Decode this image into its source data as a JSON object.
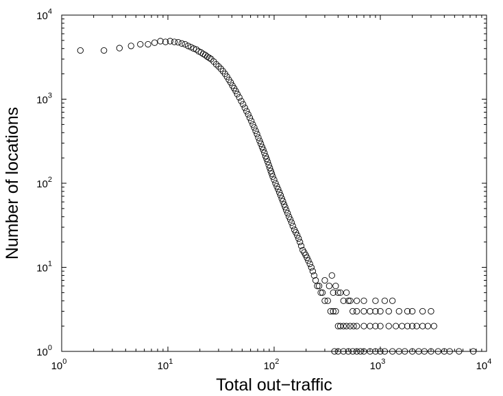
{
  "chart_data": {
    "type": "scatter",
    "title": "",
    "xlabel": "Total out−traffic",
    "ylabel": "Number of locations",
    "xscale": "log",
    "yscale": "log",
    "xlim": [
      1,
      10000
    ],
    "ylim": [
      1,
      10000
    ],
    "grid": false,
    "marker": "open-circle",
    "marker_color": "#000000",
    "x_ticks": [
      {
        "value": 1,
        "base": "10",
        "exp": "0"
      },
      {
        "value": 10,
        "base": "10",
        "exp": "1"
      },
      {
        "value": 100,
        "base": "10",
        "exp": "2"
      },
      {
        "value": 1000,
        "base": "10",
        "exp": "3"
      },
      {
        "value": 10000,
        "base": "10",
        "exp": "4"
      }
    ],
    "y_ticks": [
      {
        "value": 1,
        "base": "10",
        "exp": "0"
      },
      {
        "value": 10,
        "base": "10",
        "exp": "1"
      },
      {
        "value": 100,
        "base": "10",
        "exp": "2"
      },
      {
        "value": 1000,
        "base": "10",
        "exp": "3"
      },
      {
        "value": 10000,
        "base": "10",
        "exp": "4"
      }
    ],
    "series": [
      {
        "points": [
          [
            1.5,
            3800
          ],
          [
            2.5,
            3800
          ],
          [
            3.5,
            4050
          ],
          [
            4.5,
            4300
          ],
          [
            5.5,
            4500
          ],
          [
            6.5,
            4500
          ],
          [
            7.5,
            4700
          ],
          [
            8.5,
            4900
          ],
          [
            9.5,
            4800
          ],
          [
            10.5,
            4900
          ],
          [
            11.5,
            4800
          ],
          [
            12.5,
            4750
          ],
          [
            13.5,
            4600
          ],
          [
            14.5,
            4500
          ],
          [
            15.5,
            4300
          ],
          [
            16.5,
            4150
          ],
          [
            17.5,
            4000
          ],
          [
            18.5,
            3900
          ],
          [
            19.5,
            3700
          ],
          [
            20.5,
            3600
          ],
          [
            21.5,
            3450
          ],
          [
            22.5,
            3350
          ],
          [
            23.5,
            3200
          ],
          [
            24.5,
            3100
          ],
          [
            25.5,
            3000
          ],
          [
            27,
            2800
          ],
          [
            28.5,
            2600
          ],
          [
            30,
            2450
          ],
          [
            31.5,
            2300
          ],
          [
            33,
            2150
          ],
          [
            34.5,
            2000
          ],
          [
            36,
            1850
          ],
          [
            37.5,
            1700
          ],
          [
            39,
            1580
          ],
          [
            40.5,
            1450
          ],
          [
            42,
            1350
          ],
          [
            43.5,
            1250
          ],
          [
            45,
            1150
          ],
          [
            47,
            1050
          ],
          [
            49,
            950
          ],
          [
            51,
            870
          ],
          [
            53,
            790
          ],
          [
            55,
            720
          ],
          [
            57,
            660
          ],
          [
            59,
            600
          ],
          [
            61,
            550
          ],
          [
            63,
            500
          ],
          [
            65,
            460
          ],
          [
            67,
            420
          ],
          [
            69,
            385
          ],
          [
            71,
            350
          ],
          [
            73,
            320
          ],
          [
            75,
            295
          ],
          [
            77,
            270
          ],
          [
            79,
            250
          ],
          [
            81,
            230
          ],
          [
            83,
            210
          ],
          [
            85,
            195
          ],
          [
            87,
            180
          ],
          [
            89,
            165
          ],
          [
            91,
            152
          ],
          [
            93,
            140
          ],
          [
            95,
            130
          ],
          [
            97,
            120
          ],
          [
            100,
            110
          ],
          [
            103,
            100
          ],
          [
            106,
            92
          ],
          [
            109,
            85
          ],
          [
            112,
            78
          ],
          [
            115,
            72
          ],
          [
            118,
            66
          ],
          [
            121,
            61
          ],
          [
            124,
            56
          ],
          [
            127,
            52
          ],
          [
            130,
            48
          ],
          [
            134,
            44
          ],
          [
            138,
            40
          ],
          [
            142,
            37
          ],
          [
            146,
            34
          ],
          [
            150,
            31
          ],
          [
            155,
            28
          ],
          [
            160,
            26
          ],
          [
            165,
            24
          ],
          [
            170,
            22
          ],
          [
            175,
            20
          ],
          [
            180,
            18
          ],
          [
            186,
            16
          ],
          [
            192,
            15
          ],
          [
            198,
            14
          ],
          [
            204,
            13
          ],
          [
            210,
            12
          ],
          [
            217,
            11
          ],
          [
            224,
            10
          ],
          [
            231,
            9
          ],
          [
            238,
            8
          ],
          [
            246,
            7
          ],
          [
            255,
            6
          ],
          [
            265,
            6
          ],
          [
            275,
            5
          ],
          [
            285,
            5
          ],
          [
            300,
            4
          ],
          [
            320,
            4
          ],
          [
            340,
            3
          ],
          [
            360,
            3
          ],
          [
            380,
            3
          ],
          [
            400,
            2
          ],
          [
            420,
            2
          ],
          [
            450,
            2
          ],
          [
            480,
            2
          ],
          [
            520,
            2
          ],
          [
            560,
            2
          ],
          [
            600,
            2
          ],
          [
            700,
            2
          ],
          [
            800,
            2
          ],
          [
            900,
            2
          ],
          [
            1000,
            2
          ],
          [
            1200,
            2
          ],
          [
            1400,
            2
          ],
          [
            1600,
            2
          ],
          [
            1800,
            2
          ],
          [
            2000,
            2
          ],
          [
            2200,
            2
          ],
          [
            2500,
            2
          ],
          [
            2800,
            2
          ],
          [
            3200,
            2
          ],
          [
            370,
            1
          ],
          [
            400,
            1
          ],
          [
            450,
            1
          ],
          [
            500,
            1
          ],
          [
            550,
            1
          ],
          [
            600,
            1
          ],
          [
            650,
            1
          ],
          [
            700,
            1
          ],
          [
            800,
            1
          ],
          [
            900,
            1
          ],
          [
            1000,
            1
          ],
          [
            1100,
            1
          ],
          [
            1300,
            1
          ],
          [
            1500,
            1
          ],
          [
            1700,
            1
          ],
          [
            2000,
            1
          ],
          [
            2300,
            1
          ],
          [
            2600,
            1
          ],
          [
            3000,
            1
          ],
          [
            3500,
            1
          ],
          [
            4000,
            1
          ],
          [
            4500,
            1
          ],
          [
            5500,
            1
          ],
          [
            7500,
            1
          ],
          [
            300,
            7
          ],
          [
            330,
            6
          ],
          [
            360,
            5
          ],
          [
            400,
            5
          ],
          [
            450,
            4
          ],
          [
            500,
            4
          ],
          [
            550,
            3
          ],
          [
            600,
            3
          ],
          [
            700,
            3
          ],
          [
            800,
            3
          ],
          [
            900,
            3
          ],
          [
            1000,
            3
          ],
          [
            1200,
            3
          ],
          [
            1500,
            3
          ],
          [
            1800,
            3
          ],
          [
            350,
            8
          ],
          [
            380,
            6
          ],
          [
            420,
            5
          ],
          [
            480,
            5
          ],
          [
            520,
            4
          ],
          [
            600,
            4
          ],
          [
            700,
            4
          ],
          [
            900,
            4
          ],
          [
            1100,
            4
          ],
          [
            1300,
            4
          ],
          [
            2000,
            3
          ],
          [
            2500,
            3
          ],
          [
            3000,
            3
          ]
        ]
      }
    ]
  }
}
